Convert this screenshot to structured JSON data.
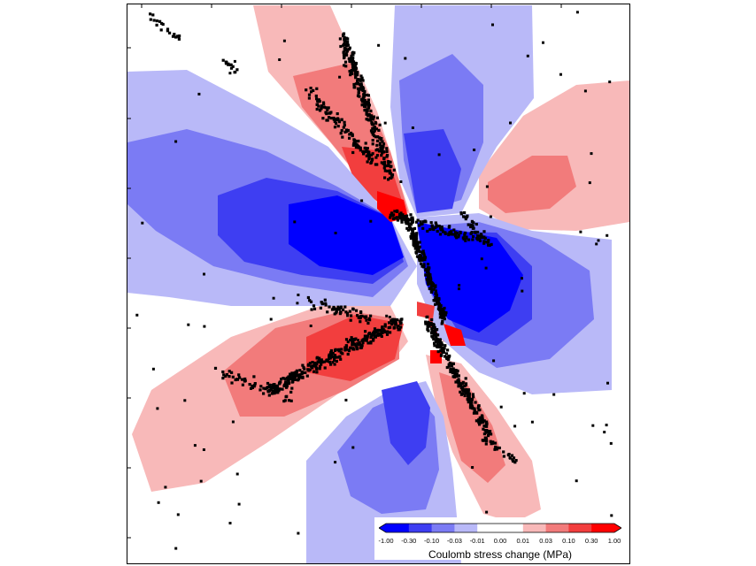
{
  "map": {
    "colorbar_colors": [
      "#0000ff",
      "#3e3ef2",
      "#7b7bf4",
      "#b9b9f8",
      "#ffffff",
      "#ffffff",
      "#f8b9b9",
      "#f27b7b",
      "#f23e3e",
      "#ff0000"
    ],
    "positive_colors": [
      "#ffffff",
      "#f8b9b9",
      "#f27b7b",
      "#f23e3e",
      "#ff0000"
    ],
    "negative_colors": [
      "#ffffff",
      "#b9b9f8",
      "#7b7bf4",
      "#3e3ef2",
      "#0000ff"
    ],
    "point_color": "#000000"
  },
  "legend": {
    "ticks": [
      "-1.00",
      "-0.30",
      "-0.10",
      "-0.03",
      "-0.01",
      "0.00",
      "0.01",
      "0.03",
      "0.10",
      "0.30",
      "1.00"
    ],
    "title": "Coulomb stress change (MPa)"
  }
}
